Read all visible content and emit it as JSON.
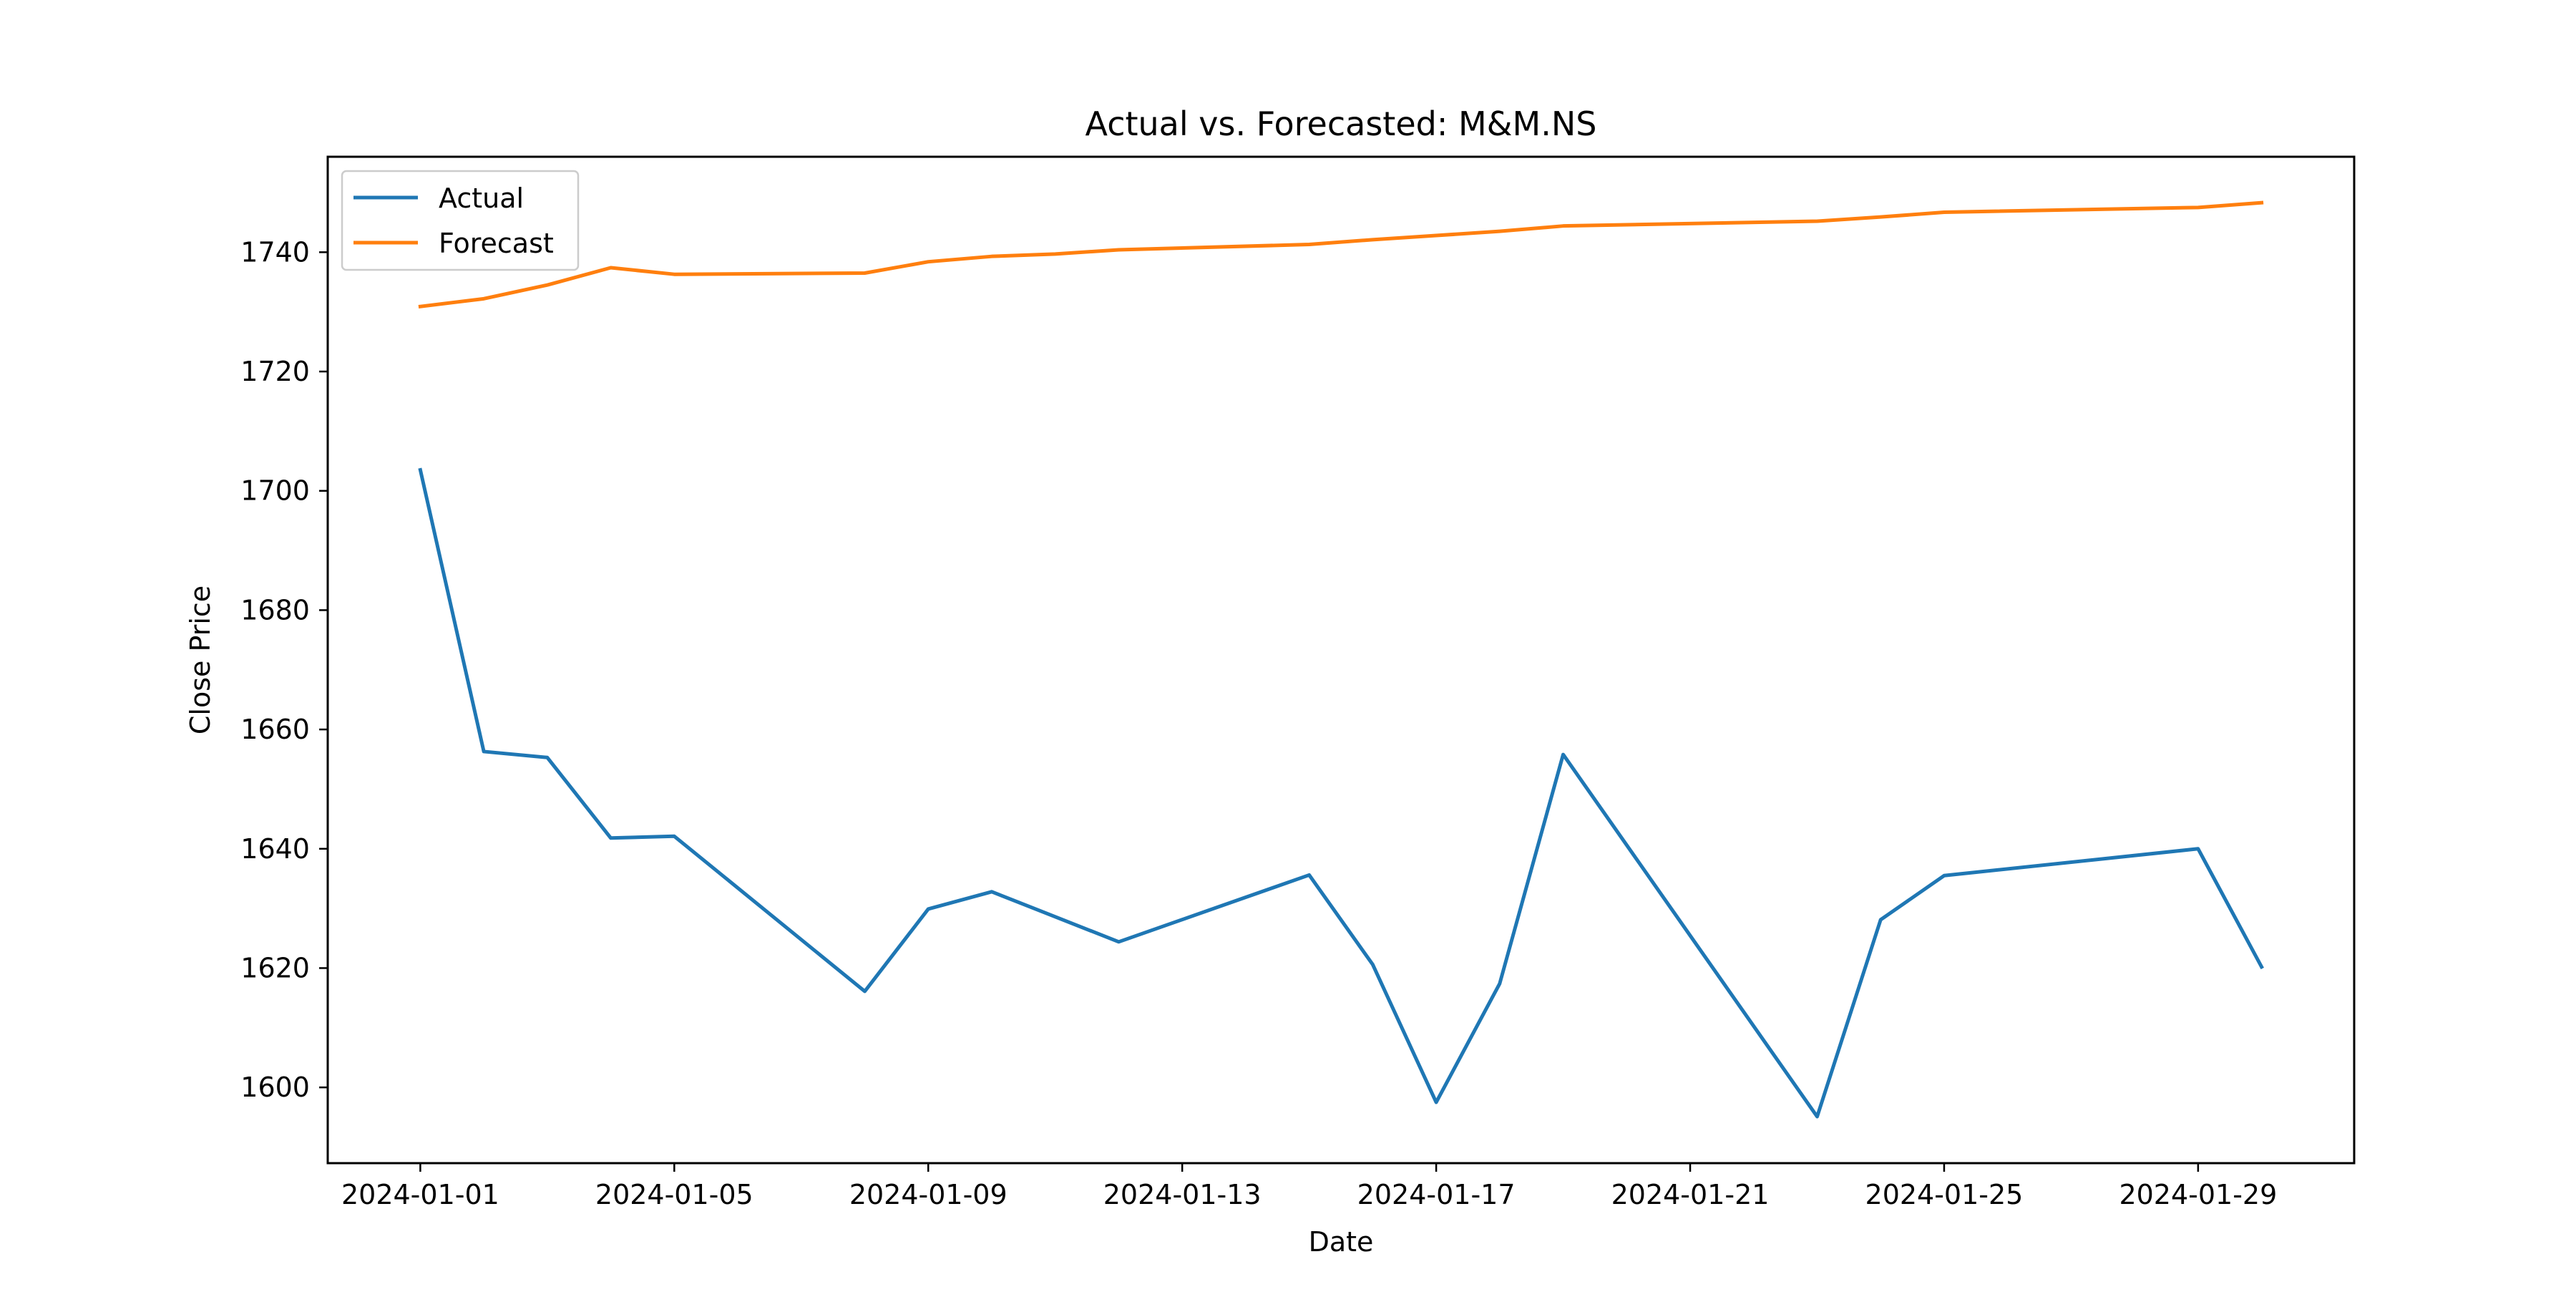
{
  "chart_data": {
    "type": "line",
    "title": "Actual vs. Forecasted: M&M.NS",
    "xlabel": "Date",
    "ylabel": "Close Price",
    "x_ticks": [
      "2024-01-01",
      "2024-01-05",
      "2024-01-09",
      "2024-01-13",
      "2024-01-17",
      "2024-01-21",
      "2024-01-25",
      "2024-01-29"
    ],
    "y_ticks": [
      1600,
      1620,
      1640,
      1660,
      1680,
      1700,
      1720,
      1740
    ],
    "xlim": [
      "2023-12-30T13:00",
      "2024-01-31T11:00"
    ],
    "ylim": [
      1587.3,
      1756.0
    ],
    "grid": false,
    "legend_position": "top-left",
    "series": [
      {
        "name": "Actual",
        "color": "#1f77b4",
        "points": [
          [
            "2024-01-01",
            1703.5
          ],
          [
            "2024-01-02",
            1656.3
          ],
          [
            "2024-01-03",
            1655.3
          ],
          [
            "2024-01-04",
            1641.8
          ],
          [
            "2024-01-05",
            1642.1
          ],
          [
            "2024-01-08",
            1616.1
          ],
          [
            "2024-01-09",
            1629.9
          ],
          [
            "2024-01-10",
            1632.8
          ],
          [
            "2024-01-12",
            1624.4
          ],
          [
            "2024-01-15",
            1635.6
          ],
          [
            "2024-01-16",
            1620.6
          ],
          [
            "2024-01-17",
            1597.5
          ],
          [
            "2024-01-18",
            1617.4
          ],
          [
            "2024-01-19",
            1655.8
          ],
          [
            "2024-01-23",
            1595.1
          ],
          [
            "2024-01-24",
            1628.1
          ],
          [
            "2024-01-25",
            1635.5
          ],
          [
            "2024-01-29",
            1640.0
          ],
          [
            "2024-01-30",
            1620.2
          ]
        ]
      },
      {
        "name": "Forecast",
        "color": "#ff7f0e",
        "points": [
          [
            "2024-01-01",
            1730.9
          ],
          [
            "2024-01-02",
            1732.2
          ],
          [
            "2024-01-03",
            1734.5
          ],
          [
            "2024-01-04",
            1737.4
          ],
          [
            "2024-01-05",
            1736.3
          ],
          [
            "2024-01-08",
            1736.5
          ],
          [
            "2024-01-09",
            1738.4
          ],
          [
            "2024-01-10",
            1739.3
          ],
          [
            "2024-01-11",
            1739.7
          ],
          [
            "2024-01-12",
            1740.4
          ],
          [
            "2024-01-15",
            1741.3
          ],
          [
            "2024-01-16",
            1742.1
          ],
          [
            "2024-01-17",
            1742.8
          ],
          [
            "2024-01-18",
            1743.5
          ],
          [
            "2024-01-19",
            1744.4
          ],
          [
            "2024-01-23",
            1745.2
          ],
          [
            "2024-01-24",
            1745.9
          ],
          [
            "2024-01-25",
            1746.7
          ],
          [
            "2024-01-29",
            1747.5
          ],
          [
            "2024-01-30",
            1748.3
          ]
        ]
      }
    ]
  }
}
